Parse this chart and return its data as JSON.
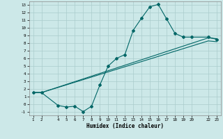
{
  "xlabel": "Humidex (Indice chaleur)",
  "bg_color": "#cce8e8",
  "grid_color": "#aacccc",
  "line_color": "#006666",
  "xlim": [
    0.5,
    23.5
  ],
  "ylim": [
    -1.5,
    13.5
  ],
  "xticks": [
    1,
    2,
    4,
    5,
    6,
    7,
    8,
    9,
    10,
    11,
    12,
    13,
    14,
    15,
    16,
    17,
    18,
    19,
    20,
    22,
    23
  ],
  "yticks": [
    -1,
    0,
    1,
    2,
    3,
    4,
    5,
    6,
    7,
    8,
    9,
    10,
    11,
    12,
    13
  ],
  "curve1_x": [
    1,
    2,
    4,
    5,
    6,
    7,
    8,
    9,
    10,
    11,
    12,
    13,
    14,
    15,
    16,
    17,
    18,
    19,
    20,
    22,
    23
  ],
  "curve1_y": [
    1.5,
    1.5,
    -0.2,
    -0.4,
    -0.3,
    -1.0,
    -0.3,
    2.5,
    5.0,
    6.0,
    6.5,
    9.7,
    11.3,
    12.8,
    13.1,
    11.2,
    9.3,
    8.8,
    8.8,
    8.8,
    8.5
  ],
  "curve2_x": [
    1,
    2,
    22,
    23
  ],
  "curve2_y": [
    1.5,
    1.5,
    8.7,
    8.6
  ],
  "curve3_x": [
    1,
    2,
    22,
    23
  ],
  "curve3_y": [
    1.5,
    1.5,
    8.3,
    8.2
  ]
}
